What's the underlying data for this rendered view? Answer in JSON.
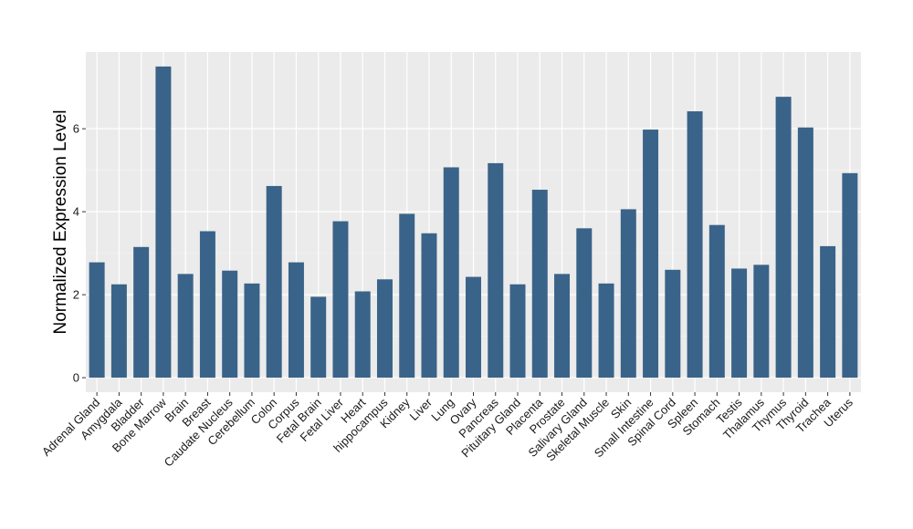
{
  "chart_data": {
    "type": "bar",
    "title": "",
    "xlabel": "",
    "ylabel": "Normalized Expression Level",
    "ylim": [
      -0.35,
      7.85
    ],
    "yticks": [
      0,
      2,
      4,
      6
    ],
    "grid": true,
    "legend": "none",
    "colors": {
      "bar": "#3A6389",
      "panel": "#EBEBEB",
      "grid_major": "#FFFFFF",
      "grid_minor": "#F5F5F5",
      "tick": "#333333"
    },
    "categories": [
      "Adrenal Gland",
      "Amygdala",
      "Bladder",
      "Bone Marrow",
      "Brain",
      "Breast",
      "Caudate Nucleus",
      "Cerebellum",
      "Colon",
      "Corpus",
      "Fetal Brain",
      "Fetal Liver",
      "Heart",
      "hippocampus",
      "Kidney",
      "Liver",
      "Lung",
      "Ovary",
      "Pancreas",
      "Pituitary Gland",
      "Placenta",
      "Prostate",
      "Salivary Gland",
      "Skeletal Muscle",
      "Skin",
      "Small Intestine",
      "Spinal Cord",
      "Spleen",
      "Stomach",
      "Testis",
      "Thalamus",
      "Thymus",
      "Thyroid",
      "Trachea",
      "Uterus"
    ],
    "values": [
      2.78,
      2.25,
      3.15,
      7.5,
      2.5,
      3.53,
      2.58,
      2.27,
      4.62,
      2.78,
      1.95,
      3.77,
      2.08,
      2.37,
      3.95,
      3.48,
      5.07,
      2.43,
      5.17,
      2.25,
      4.53,
      2.5,
      3.6,
      2.27,
      4.06,
      5.98,
      2.6,
      6.42,
      3.68,
      2.63,
      2.72,
      6.77,
      6.03,
      3.17,
      4.93
    ]
  }
}
